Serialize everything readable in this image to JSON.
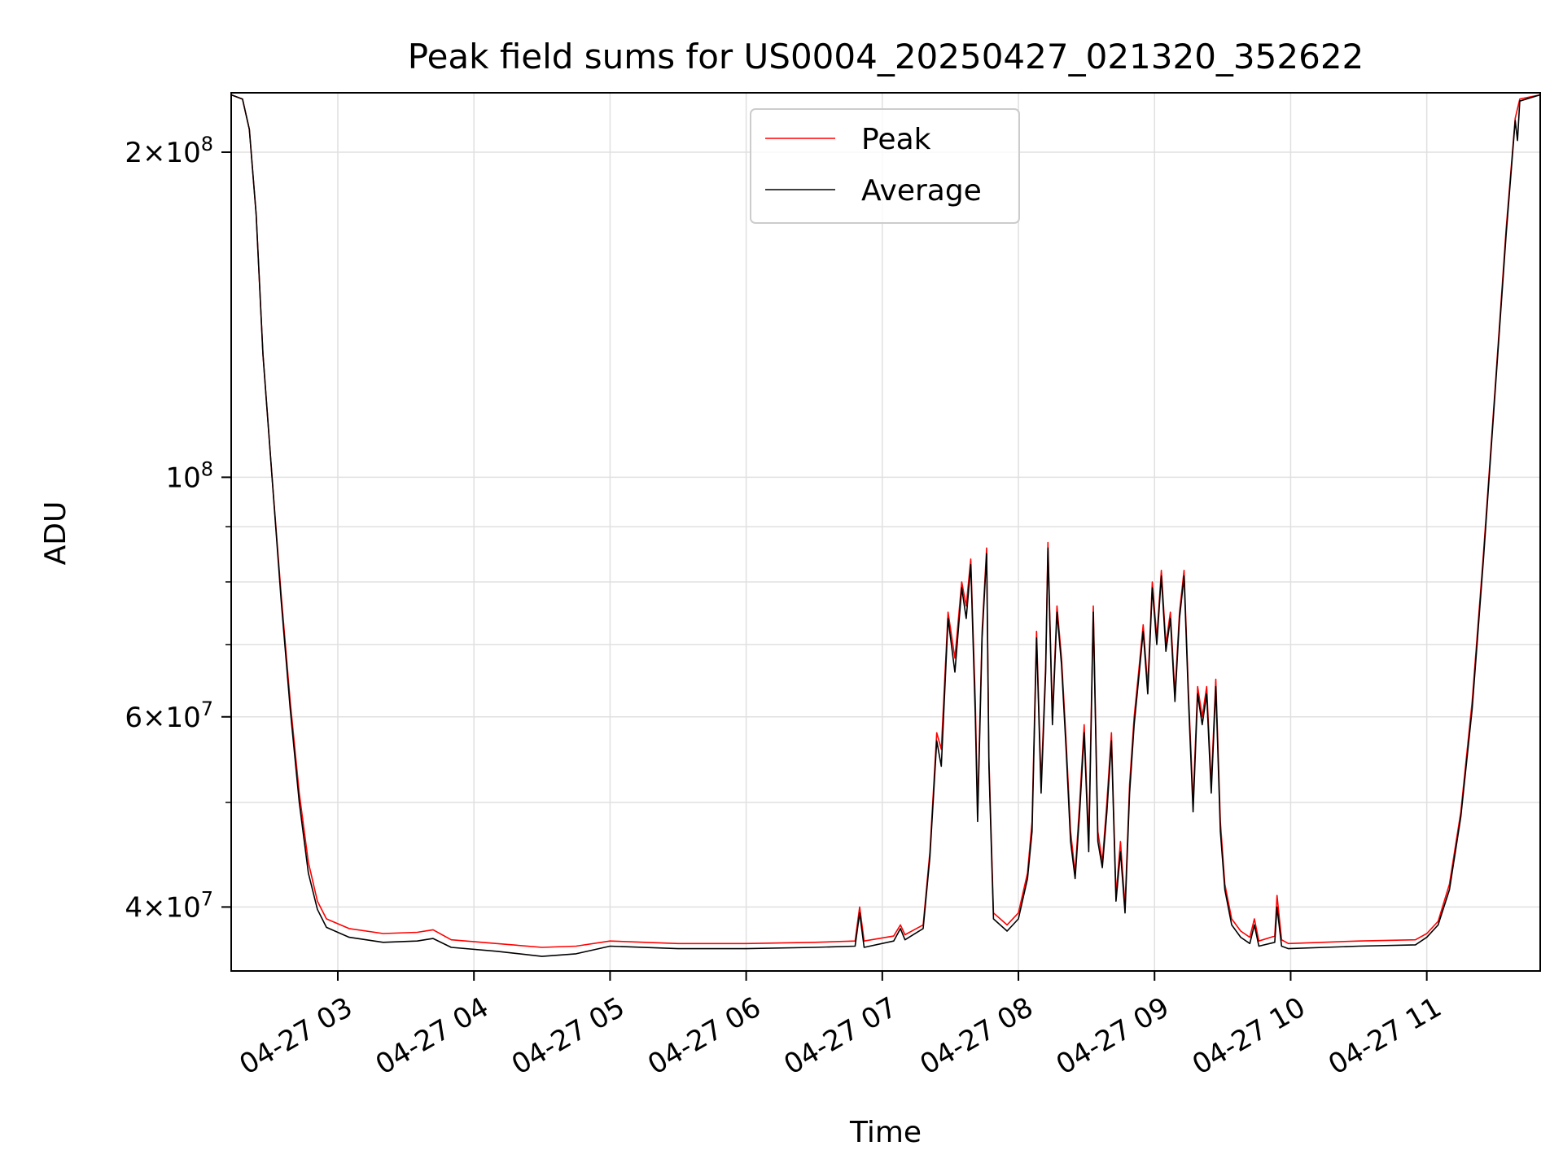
{
  "chart_data": {
    "type": "line",
    "title": "Peak field sums for US0004_20250427_021320_352622",
    "xlabel": "Time",
    "ylabel": "ADU",
    "yscale": "log",
    "xlim": [
      "2025-04-27 02:13",
      "2025-04-27 11:50"
    ],
    "ylim": [
      34900000,
      227000000
    ],
    "x_ticks": [
      {
        "t": "2025-04-27 03:00",
        "label": "04-27 03"
      },
      {
        "t": "2025-04-27 04:00",
        "label": "04-27 04"
      },
      {
        "t": "2025-04-27 05:00",
        "label": "04-27 05"
      },
      {
        "t": "2025-04-27 06:00",
        "label": "04-27 06"
      },
      {
        "t": "2025-04-27 07:00",
        "label": "04-27 07"
      },
      {
        "t": "2025-04-27 08:00",
        "label": "04-27 08"
      },
      {
        "t": "2025-04-27 09:00",
        "label": "04-27 09"
      },
      {
        "t": "2025-04-27 10:00",
        "label": "04-27 10"
      },
      {
        "t": "2025-04-27 11:00",
        "label": "04-27 11"
      }
    ],
    "y_major_ticks": [
      {
        "value": 40000000,
        "mant": "4",
        "exp": "7"
      },
      {
        "value": 60000000,
        "mant": "6",
        "exp": "7"
      },
      {
        "value": 100000000,
        "mant": "",
        "exp": "8"
      },
      {
        "value": 200000000,
        "mant": "2",
        "exp": "8"
      }
    ],
    "y_minor_ticks": [
      50000000,
      70000000,
      80000000,
      90000000
    ],
    "grid": true,
    "legend": {
      "position": "top-center"
    },
    "series": [
      {
        "name": "Peak",
        "color": "#ff0000",
        "points": [
          [
            "2025-04-27 02:13",
            226000000
          ],
          [
            "2025-04-27 02:18",
            224000000
          ],
          [
            "2025-04-27 02:21",
            210000000
          ],
          [
            "2025-04-27 02:24",
            175000000
          ],
          [
            "2025-04-27 02:27",
            130000000
          ],
          [
            "2025-04-27 02:31",
            100000000
          ],
          [
            "2025-04-27 02:35",
            78000000
          ],
          [
            "2025-04-27 02:39",
            62000000
          ],
          [
            "2025-04-27 02:43",
            51000000
          ],
          [
            "2025-04-27 02:47",
            44000000
          ],
          [
            "2025-04-27 02:51",
            40500000
          ],
          [
            "2025-04-27 02:55",
            39000000
          ],
          [
            "2025-04-27 03:05",
            38200000
          ],
          [
            "2025-04-27 03:20",
            37800000
          ],
          [
            "2025-04-27 03:35",
            37900000
          ],
          [
            "2025-04-27 03:42",
            38100000
          ],
          [
            "2025-04-27 03:50",
            37300000
          ],
          [
            "2025-04-27 04:10",
            37000000
          ],
          [
            "2025-04-27 04:30",
            36700000
          ],
          [
            "2025-04-27 04:45",
            36800000
          ],
          [
            "2025-04-27 05:00",
            37200000
          ],
          [
            "2025-04-27 05:30",
            37000000
          ],
          [
            "2025-04-27 06:00",
            37000000
          ],
          [
            "2025-04-27 06:30",
            37100000
          ],
          [
            "2025-04-27 06:48",
            37200000
          ],
          [
            "2025-04-27 06:50",
            40000000
          ],
          [
            "2025-04-27 06:52",
            37200000
          ],
          [
            "2025-04-27 07:05",
            37600000
          ],
          [
            "2025-04-27 07:08",
            38500000
          ],
          [
            "2025-04-27 07:10",
            37700000
          ],
          [
            "2025-04-27 07:18",
            38500000
          ],
          [
            "2025-04-27 07:21",
            45000000
          ],
          [
            "2025-04-27 07:24",
            58000000
          ],
          [
            "2025-04-27 07:26",
            56000000
          ],
          [
            "2025-04-27 07:29",
            75000000
          ],
          [
            "2025-04-27 07:32",
            68000000
          ],
          [
            "2025-04-27 07:35",
            80000000
          ],
          [
            "2025-04-27 07:37",
            76000000
          ],
          [
            "2025-04-27 07:39",
            84000000
          ],
          [
            "2025-04-27 07:41",
            62000000
          ],
          [
            "2025-04-27 07:42",
            49000000
          ],
          [
            "2025-04-27 07:44",
            72000000
          ],
          [
            "2025-04-27 07:46",
            86000000
          ],
          [
            "2025-04-27 07:47",
            55000000
          ],
          [
            "2025-04-27 07:49",
            39500000
          ],
          [
            "2025-04-27 07:55",
            38500000
          ],
          [
            "2025-04-27 08:00",
            39500000
          ],
          [
            "2025-04-27 08:04",
            43000000
          ],
          [
            "2025-04-27 08:06",
            48000000
          ],
          [
            "2025-04-27 08:08",
            72000000
          ],
          [
            "2025-04-27 08:10",
            52000000
          ],
          [
            "2025-04-27 08:12",
            67000000
          ],
          [
            "2025-04-27 08:13",
            87000000
          ],
          [
            "2025-04-27 08:15",
            60000000
          ],
          [
            "2025-04-27 08:17",
            76000000
          ],
          [
            "2025-04-27 08:19",
            68000000
          ],
          [
            "2025-04-27 08:21",
            57000000
          ],
          [
            "2025-04-27 08:23",
            47000000
          ],
          [
            "2025-04-27 08:25",
            43000000
          ],
          [
            "2025-04-27 08:27",
            50000000
          ],
          [
            "2025-04-27 08:29",
            59000000
          ],
          [
            "2025-04-27 08:31",
            46000000
          ],
          [
            "2025-04-27 08:33",
            76000000
          ],
          [
            "2025-04-27 08:35",
            47000000
          ],
          [
            "2025-04-27 08:37",
            44000000
          ],
          [
            "2025-04-27 08:39",
            50000000
          ],
          [
            "2025-04-27 08:41",
            58000000
          ],
          [
            "2025-04-27 08:43",
            41000000
          ],
          [
            "2025-04-27 08:45",
            46000000
          ],
          [
            "2025-04-27 08:47",
            40000000
          ],
          [
            "2025-04-27 08:49",
            52000000
          ],
          [
            "2025-04-27 08:51",
            60000000
          ],
          [
            "2025-04-27 08:53",
            66000000
          ],
          [
            "2025-04-27 08:55",
            73000000
          ],
          [
            "2025-04-27 08:57",
            64000000
          ],
          [
            "2025-04-27 08:59",
            80000000
          ],
          [
            "2025-04-27 09:01",
            71000000
          ],
          [
            "2025-04-27 09:03",
            82000000
          ],
          [
            "2025-04-27 09:05",
            70000000
          ],
          [
            "2025-04-27 09:07",
            75000000
          ],
          [
            "2025-04-27 09:09",
            63000000
          ],
          [
            "2025-04-27 09:11",
            75000000
          ],
          [
            "2025-04-27 09:13",
            82000000
          ],
          [
            "2025-04-27 09:15",
            63000000
          ],
          [
            "2025-04-27 09:17",
            50000000
          ],
          [
            "2025-04-27 09:19",
            64000000
          ],
          [
            "2025-04-27 09:21",
            60000000
          ],
          [
            "2025-04-27 09:23",
            64000000
          ],
          [
            "2025-04-27 09:25",
            52000000
          ],
          [
            "2025-04-27 09:27",
            65000000
          ],
          [
            "2025-04-27 09:29",
            48000000
          ],
          [
            "2025-04-27 09:31",
            42000000
          ],
          [
            "2025-04-27 09:34",
            39000000
          ],
          [
            "2025-04-27 09:38",
            38000000
          ],
          [
            "2025-04-27 09:42",
            37500000
          ],
          [
            "2025-04-27 09:44",
            39000000
          ],
          [
            "2025-04-27 09:46",
            37200000
          ],
          [
            "2025-04-27 09:53",
            37600000
          ],
          [
            "2025-04-27 09:54",
            41000000
          ],
          [
            "2025-04-27 09:56",
            37300000
          ],
          [
            "2025-04-27 09:59",
            37000000
          ],
          [
            "2025-04-27 10:30",
            37200000
          ],
          [
            "2025-04-27 10:55",
            37300000
          ],
          [
            "2025-04-27 11:00",
            37800000
          ],
          [
            "2025-04-27 11:05",
            38800000
          ],
          [
            "2025-04-27 11:10",
            42000000
          ],
          [
            "2025-04-27 11:15",
            49000000
          ],
          [
            "2025-04-27 11:20",
            62000000
          ],
          [
            "2025-04-27 11:25",
            85000000
          ],
          [
            "2025-04-27 11:30",
            120000000
          ],
          [
            "2025-04-27 11:35",
            170000000
          ],
          [
            "2025-04-27 11:39",
            215000000
          ],
          [
            "2025-04-27 11:41",
            224000000
          ],
          [
            "2025-04-27 11:50",
            226000000
          ]
        ]
      },
      {
        "name": "Average",
        "color": "#000000",
        "points": [
          [
            "2025-04-27 02:13",
            226000000
          ],
          [
            "2025-04-27 02:18",
            224000000
          ],
          [
            "2025-04-27 02:21",
            210000000
          ],
          [
            "2025-04-27 02:24",
            175000000
          ],
          [
            "2025-04-27 02:27",
            130000000
          ],
          [
            "2025-04-27 02:31",
            100000000
          ],
          [
            "2025-04-27 02:35",
            77000000
          ],
          [
            "2025-04-27 02:39",
            61000000
          ],
          [
            "2025-04-27 02:43",
            50000000
          ],
          [
            "2025-04-27 02:47",
            43000000
          ],
          [
            "2025-04-27 02:51",
            39800000
          ],
          [
            "2025-04-27 02:55",
            38300000
          ],
          [
            "2025-04-27 03:05",
            37500000
          ],
          [
            "2025-04-27 03:20",
            37100000
          ],
          [
            "2025-04-27 03:35",
            37200000
          ],
          [
            "2025-04-27 03:42",
            37400000
          ],
          [
            "2025-04-27 03:50",
            36700000
          ],
          [
            "2025-04-27 04:10",
            36400000
          ],
          [
            "2025-04-27 04:30",
            36000000
          ],
          [
            "2025-04-27 04:45",
            36200000
          ],
          [
            "2025-04-27 05:00",
            36800000
          ],
          [
            "2025-04-27 05:30",
            36600000
          ],
          [
            "2025-04-27 06:00",
            36600000
          ],
          [
            "2025-04-27 06:30",
            36700000
          ],
          [
            "2025-04-27 06:48",
            36800000
          ],
          [
            "2025-04-27 06:50",
            39500000
          ],
          [
            "2025-04-27 06:52",
            36700000
          ],
          [
            "2025-04-27 07:05",
            37200000
          ],
          [
            "2025-04-27 07:08",
            38200000
          ],
          [
            "2025-04-27 07:10",
            37300000
          ],
          [
            "2025-04-27 07:18",
            38200000
          ],
          [
            "2025-04-27 07:21",
            44500000
          ],
          [
            "2025-04-27 07:24",
            57000000
          ],
          [
            "2025-04-27 07:26",
            54000000
          ],
          [
            "2025-04-27 07:29",
            74000000
          ],
          [
            "2025-04-27 07:32",
            66000000
          ],
          [
            "2025-04-27 07:35",
            79000000
          ],
          [
            "2025-04-27 07:37",
            74000000
          ],
          [
            "2025-04-27 07:39",
            83000000
          ],
          [
            "2025-04-27 07:41",
            60000000
          ],
          [
            "2025-04-27 07:42",
            48000000
          ],
          [
            "2025-04-27 07:44",
            71000000
          ],
          [
            "2025-04-27 07:46",
            85000000
          ],
          [
            "2025-04-27 07:47",
            54000000
          ],
          [
            "2025-04-27 07:49",
            39000000
          ],
          [
            "2025-04-27 07:55",
            38000000
          ],
          [
            "2025-04-27 08:00",
            39000000
          ],
          [
            "2025-04-27 08:04",
            42500000
          ],
          [
            "2025-04-27 08:06",
            47000000
          ],
          [
            "2025-04-27 08:08",
            71000000
          ],
          [
            "2025-04-27 08:10",
            51000000
          ],
          [
            "2025-04-27 08:12",
            66000000
          ],
          [
            "2025-04-27 08:13",
            86000000
          ],
          [
            "2025-04-27 08:15",
            59000000
          ],
          [
            "2025-04-27 08:17",
            75000000
          ],
          [
            "2025-04-27 08:19",
            67000000
          ],
          [
            "2025-04-27 08:21",
            56000000
          ],
          [
            "2025-04-27 08:23",
            46000000
          ],
          [
            "2025-04-27 08:25",
            42500000
          ],
          [
            "2025-04-27 08:27",
            49000000
          ],
          [
            "2025-04-27 08:29",
            58000000
          ],
          [
            "2025-04-27 08:31",
            45000000
          ],
          [
            "2025-04-27 08:33",
            75000000
          ],
          [
            "2025-04-27 08:35",
            46000000
          ],
          [
            "2025-04-27 08:37",
            43500000
          ],
          [
            "2025-04-27 08:39",
            49000000
          ],
          [
            "2025-04-27 08:41",
            57000000
          ],
          [
            "2025-04-27 08:43",
            40500000
          ],
          [
            "2025-04-27 08:45",
            45000000
          ],
          [
            "2025-04-27 08:47",
            39500000
          ],
          [
            "2025-04-27 08:49",
            51000000
          ],
          [
            "2025-04-27 08:51",
            59000000
          ],
          [
            "2025-04-27 08:53",
            65000000
          ],
          [
            "2025-04-27 08:55",
            72000000
          ],
          [
            "2025-04-27 08:57",
            63000000
          ],
          [
            "2025-04-27 08:59",
            79000000
          ],
          [
            "2025-04-27 09:01",
            70000000
          ],
          [
            "2025-04-27 09:03",
            81000000
          ],
          [
            "2025-04-27 09:05",
            69000000
          ],
          [
            "2025-04-27 09:07",
            74000000
          ],
          [
            "2025-04-27 09:09",
            62000000
          ],
          [
            "2025-04-27 09:11",
            74000000
          ],
          [
            "2025-04-27 09:13",
            81000000
          ],
          [
            "2025-04-27 09:15",
            62000000
          ],
          [
            "2025-04-27 09:17",
            49000000
          ],
          [
            "2025-04-27 09:19",
            63000000
          ],
          [
            "2025-04-27 09:21",
            59000000
          ],
          [
            "2025-04-27 09:23",
            63000000
          ],
          [
            "2025-04-27 09:25",
            51000000
          ],
          [
            "2025-04-27 09:27",
            64000000
          ],
          [
            "2025-04-27 09:29",
            47000000
          ],
          [
            "2025-04-27 09:31",
            41500000
          ],
          [
            "2025-04-27 09:34",
            38500000
          ],
          [
            "2025-04-27 09:38",
            37500000
          ],
          [
            "2025-04-27 09:42",
            37000000
          ],
          [
            "2025-04-27 09:44",
            38500000
          ],
          [
            "2025-04-27 09:46",
            36800000
          ],
          [
            "2025-04-27 09:53",
            37100000
          ],
          [
            "2025-04-27 09:54",
            40000000
          ],
          [
            "2025-04-27 09:56",
            36800000
          ],
          [
            "2025-04-27 09:59",
            36600000
          ],
          [
            "2025-04-27 10:30",
            36800000
          ],
          [
            "2025-04-27 10:55",
            36900000
          ],
          [
            "2025-04-27 11:00",
            37500000
          ],
          [
            "2025-04-27 11:05",
            38500000
          ],
          [
            "2025-04-27 11:10",
            41500000
          ],
          [
            "2025-04-27 11:15",
            48500000
          ],
          [
            "2025-04-27 11:20",
            61000000
          ],
          [
            "2025-04-27 11:25",
            84000000
          ],
          [
            "2025-04-27 11:30",
            119000000
          ],
          [
            "2025-04-27 11:35",
            168000000
          ],
          [
            "2025-04-27 11:39",
            214000000
          ],
          [
            "2025-04-27 11:40",
            205000000
          ],
          [
            "2025-04-27 11:41",
            223000000
          ],
          [
            "2025-04-27 11:50",
            226000000
          ]
        ]
      }
    ]
  }
}
